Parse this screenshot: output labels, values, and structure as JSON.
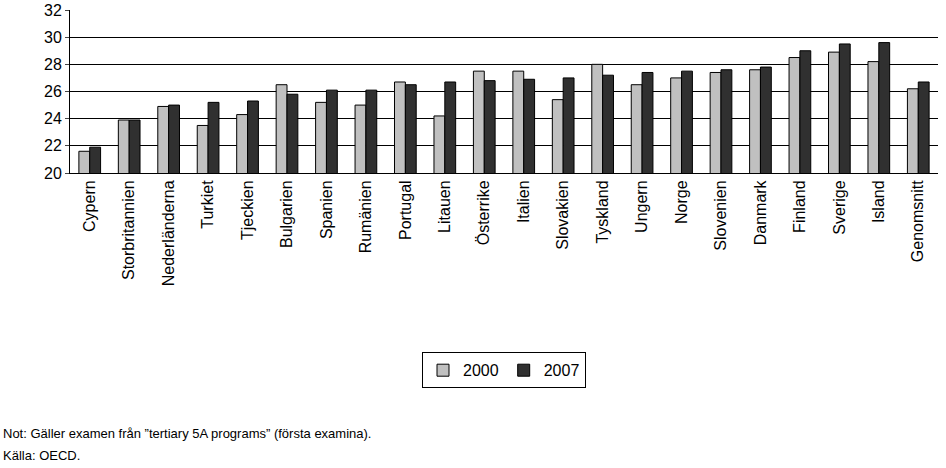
{
  "chart_data": {
    "type": "bar",
    "categories": [
      "Cypern",
      "Storbritannien",
      "Nederländerna",
      "Turkiet",
      "Tjeckien",
      "Bulgarien",
      "Spanien",
      "Rumänien",
      "Portugal",
      "Litauen",
      "Österrike",
      "Italien",
      "Slovakien",
      "Tyskland",
      "Ungern",
      "Norge",
      "Slovenien",
      "Danmark",
      "Finland",
      "Sverige",
      "Island",
      "Genomsnitt"
    ],
    "series": [
      {
        "name": "2000",
        "color": "#c0c0c0",
        "values": [
          21.6,
          23.9,
          24.9,
          23.5,
          24.3,
          26.5,
          25.2,
          25.0,
          26.7,
          24.2,
          27.5,
          27.5,
          25.4,
          28.0,
          26.5,
          27.0,
          27.4,
          27.6,
          28.5,
          28.9,
          28.2,
          26.2
        ]
      },
      {
        "name": "2007",
        "color": "#303030",
        "values": [
          21.9,
          23.9,
          25.0,
          25.2,
          25.3,
          25.8,
          26.1,
          26.1,
          26.5,
          26.7,
          26.8,
          26.9,
          27.0,
          27.2,
          27.4,
          27.5,
          27.6,
          27.8,
          29.0,
          29.5,
          29.6,
          26.7
        ]
      }
    ],
    "ylim": [
      20,
      32
    ],
    "yticks": [
      20,
      22,
      24,
      26,
      28,
      30,
      32
    ],
    "grid": true,
    "legend": "bottom",
    "annotations": [
      "Not: Gäller examen från ”tertiary 5A programs” (första examina).",
      "Källa: OECD."
    ]
  }
}
